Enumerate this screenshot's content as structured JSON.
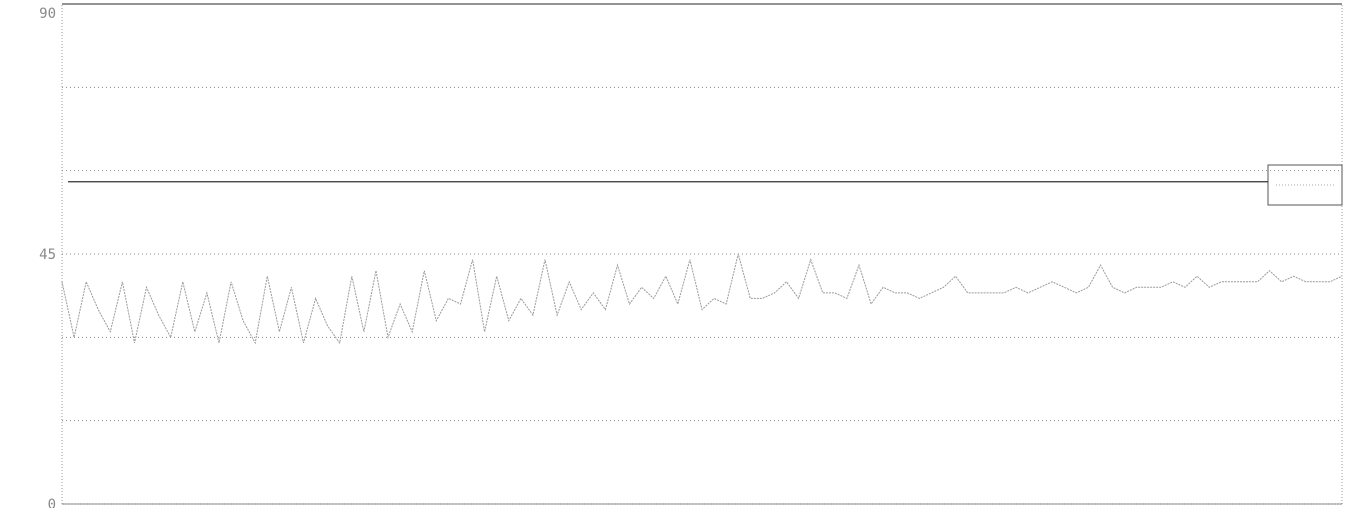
{
  "chart_data": {
    "type": "line",
    "y_ticks": [
      "90",
      "45",
      "0"
    ],
    "y_tick_values": [
      90,
      45,
      0
    ],
    "ylim": [
      0,
      90
    ],
    "grid": true,
    "reference_line": 58,
    "series": [
      {
        "values": [
          40,
          30,
          40,
          35,
          31,
          40,
          29,
          39,
          34,
          30,
          40,
          31,
          38,
          29,
          40,
          33,
          29,
          41,
          31,
          39,
          29,
          37,
          32,
          29,
          41,
          31,
          42,
          30,
          36,
          31,
          42,
          33,
          37,
          36,
          44,
          31,
          41,
          33,
          37,
          34,
          44,
          34,
          40,
          35,
          38,
          35,
          43,
          36,
          39,
          37,
          41,
          36,
          44,
          35,
          37,
          36,
          45,
          37,
          37,
          38,
          40,
          37,
          44,
          38,
          38,
          37,
          43,
          36,
          39,
          38,
          38,
          37,
          38,
          39,
          41,
          38,
          38,
          38,
          38,
          39,
          38,
          39,
          40,
          39,
          38,
          39,
          43,
          39,
          38,
          39,
          39,
          39,
          40,
          39,
          41,
          39,
          40,
          40,
          40,
          40,
          42,
          40,
          41,
          40,
          40,
          40,
          41
        ]
      }
    ]
  }
}
